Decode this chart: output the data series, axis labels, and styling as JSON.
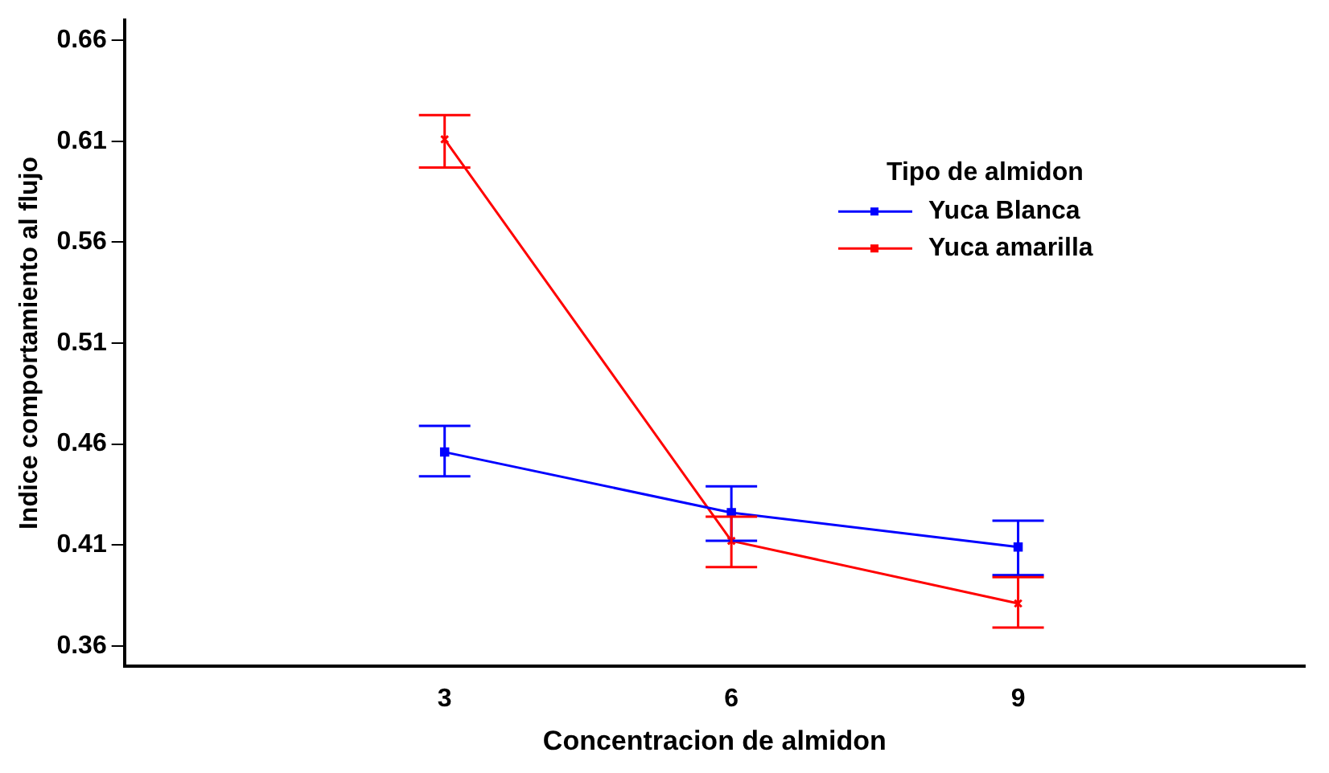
{
  "chart_data": {
    "type": "line",
    "xlabel": "Concentracion de almidon",
    "ylabel": "Indice comportamiento al flujo",
    "legend_title": "Tipo de almidon",
    "x": [
      3,
      6,
      9
    ],
    "xlim": [
      -0.35,
      12
    ],
    "xticks": [
      3,
      6,
      9
    ],
    "ylim": [
      0.35,
      0.67
    ],
    "yticks": [
      0.36,
      0.41,
      0.46,
      0.51,
      0.56,
      0.61,
      0.66
    ],
    "series": [
      {
        "name": "Yuca Blanca",
        "color": "#0000ff",
        "marker": "square",
        "values": [
          0.456,
          0.426,
          0.409
        ],
        "errors": [
          [
            0.444,
            0.469
          ],
          [
            0.412,
            0.439
          ],
          [
            0.395,
            0.422
          ]
        ]
      },
      {
        "name": "Yuca amarilla",
        "color": "#ff0000",
        "marker": "cross",
        "values": [
          0.611,
          0.412,
          0.381
        ],
        "errors": [
          [
            0.597,
            0.623
          ],
          [
            0.399,
            0.424
          ],
          [
            0.369,
            0.394
          ]
        ]
      }
    ],
    "grid": false,
    "legend": "top right",
    "line_style": "solid"
  }
}
